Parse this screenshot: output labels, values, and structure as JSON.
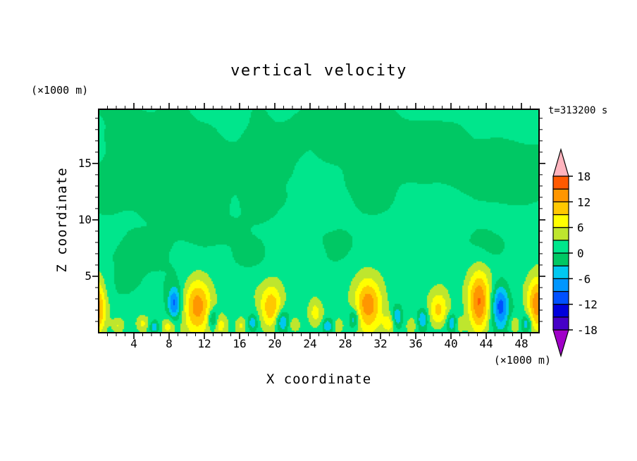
{
  "page": {
    "background": "#ffffff"
  },
  "title": "vertical velocity",
  "annotations": {
    "time_label": "t=313200 s",
    "y_axis_units": "(×1000 m)",
    "x_axis_units": "(×1000 m)"
  },
  "axes": {
    "x_label": "X coordinate",
    "y_label": "Z coordinate",
    "x_ticks": [
      4,
      8,
      12,
      16,
      20,
      24,
      28,
      32,
      36,
      40,
      44,
      48
    ],
    "y_ticks": [
      5,
      10,
      15
    ],
    "x_minor_step": 1,
    "y_minor_step": 1
  },
  "chart_data": {
    "type": "heatmap",
    "title": "vertical velocity",
    "xlabel": "X coordinate (×1000 m)",
    "ylabel": "Z coordinate (×1000 m)",
    "time_label": "t=313200 s",
    "x_range": [
      0,
      50
    ],
    "z_range": [
      0,
      19.8
    ],
    "legend_position": "right",
    "contour_levels": [
      -18,
      -15,
      -12,
      -9,
      -6,
      -3,
      0,
      3,
      6,
      9,
      12,
      15,
      18
    ],
    "colorbar_labels": [
      "18",
      "12",
      "6",
      "0",
      "-6",
      "-12",
      "-18"
    ],
    "palette": [
      "#A000C8",
      "#4600C8",
      "#0000DC",
      "#0050FF",
      "#0096FF",
      "#00C8F0",
      "#00C864",
      "#00E68C",
      "#BEE62E",
      "#FFFF00",
      "#FFC800",
      "#FF9600",
      "#FF5A00",
      "#FFB4BE"
    ],
    "description": "Vertical velocity cross-section at t=313200 s: weak mottled values (-3 to +3, two green tones) fill the domain aloft; shallow convective updraft plumes (yellow/orange cores, +6 to +15) and narrow downdraft cores (blue, -6 to -12) occupy the lowest ~5 km.",
    "field": {
      "base": 1.05,
      "noise": [
        {
          "wx": 8,
          "wz": 4.5,
          "amp": 1.35,
          "seed": 11
        },
        {
          "wx": 3,
          "wz": 1.8,
          "amp": 0.55,
          "seed": 23
        }
      ],
      "patches": [
        [
          6,
          17,
          4,
          2.5,
          -2.2
        ],
        [
          14,
          14,
          3,
          2,
          -2
        ],
        [
          24,
          17.5,
          5,
          2.2,
          -2.2
        ],
        [
          11,
          10.5,
          2.5,
          1.5,
          -1.8
        ],
        [
          20,
          12,
          2,
          1.5,
          -1.8
        ],
        [
          31,
          13.5,
          2.5,
          2,
          -2
        ],
        [
          38,
          16.5,
          3,
          2,
          -2
        ],
        [
          47,
          15.5,
          3,
          2.5,
          -2.2
        ],
        [
          5,
          7.5,
          2,
          1.2,
          -1.8
        ],
        [
          17,
          6.5,
          2,
          1.2,
          -1.8
        ],
        [
          27,
          7.5,
          2.5,
          1.5,
          -1.8
        ],
        [
          36,
          6,
          2,
          1.2,
          -1.8
        ],
        [
          44,
          8,
          2,
          1.5,
          -1.8
        ],
        [
          25,
          3.5,
          1.5,
          1,
          -1.6
        ],
        [
          2,
          12,
          2,
          1.5,
          -1.8
        ]
      ],
      "plumes": [
        [
          -0.3,
          2.2,
          0.8,
          1.8,
          14
        ],
        [
          2.2,
          0.6,
          0.5,
          0.5,
          5
        ],
        [
          5.0,
          0.8,
          0.5,
          0.5,
          5
        ],
        [
          7.9,
          0.6,
          0.5,
          0.5,
          5.5
        ],
        [
          11.2,
          2.4,
          1.1,
          1.7,
          12.5
        ],
        [
          13.8,
          0.7,
          0.5,
          0.6,
          5.5
        ],
        [
          16.2,
          0.6,
          0.4,
          0.5,
          4.5
        ],
        [
          19.6,
          2.2,
          0.9,
          1.4,
          10
        ],
        [
          22.3,
          0.7,
          0.5,
          0.5,
          5.5
        ],
        [
          24.6,
          1.8,
          0.7,
          1.0,
          7.5
        ],
        [
          27.2,
          0.6,
          0.4,
          0.5,
          4.5
        ],
        [
          30.6,
          2.4,
          1.1,
          1.6,
          12.5
        ],
        [
          33.0,
          0.8,
          0.5,
          0.6,
          5.5
        ],
        [
          35.5,
          0.6,
          0.4,
          0.5,
          4.5
        ],
        [
          38.6,
          2.0,
          0.8,
          1.2,
          8.5
        ],
        [
          41.0,
          0.7,
          0.4,
          0.5,
          5
        ],
        [
          43.2,
          2.6,
          0.9,
          2.0,
          14
        ],
        [
          47.2,
          0.7,
          0.5,
          0.6,
          5.5
        ],
        [
          49.8,
          2.4,
          0.8,
          1.8,
          13.5
        ]
      ],
      "downdrafts": [
        [
          6.3,
          0.5,
          0.4,
          0.4,
          -7
        ],
        [
          8.6,
          2.6,
          0.5,
          1.0,
          -10.5
        ],
        [
          13.0,
          1.2,
          0.4,
          0.6,
          -8
        ],
        [
          17.5,
          0.9,
          0.4,
          0.5,
          -7
        ],
        [
          20.8,
          1.0,
          0.5,
          0.7,
          -8.5
        ],
        [
          26.0,
          0.6,
          0.4,
          0.4,
          -7
        ],
        [
          29.0,
          1.2,
          0.4,
          0.6,
          -7.5
        ],
        [
          33.9,
          1.4,
          0.4,
          0.7,
          -8
        ],
        [
          36.8,
          1.2,
          0.4,
          0.6,
          -7.5
        ],
        [
          40.1,
          0.9,
          0.4,
          0.5,
          -7
        ],
        [
          45.6,
          2.4,
          0.7,
          1.3,
          -11.5
        ],
        [
          48.6,
          0.8,
          0.4,
          0.5,
          -7
        ]
      ]
    }
  }
}
